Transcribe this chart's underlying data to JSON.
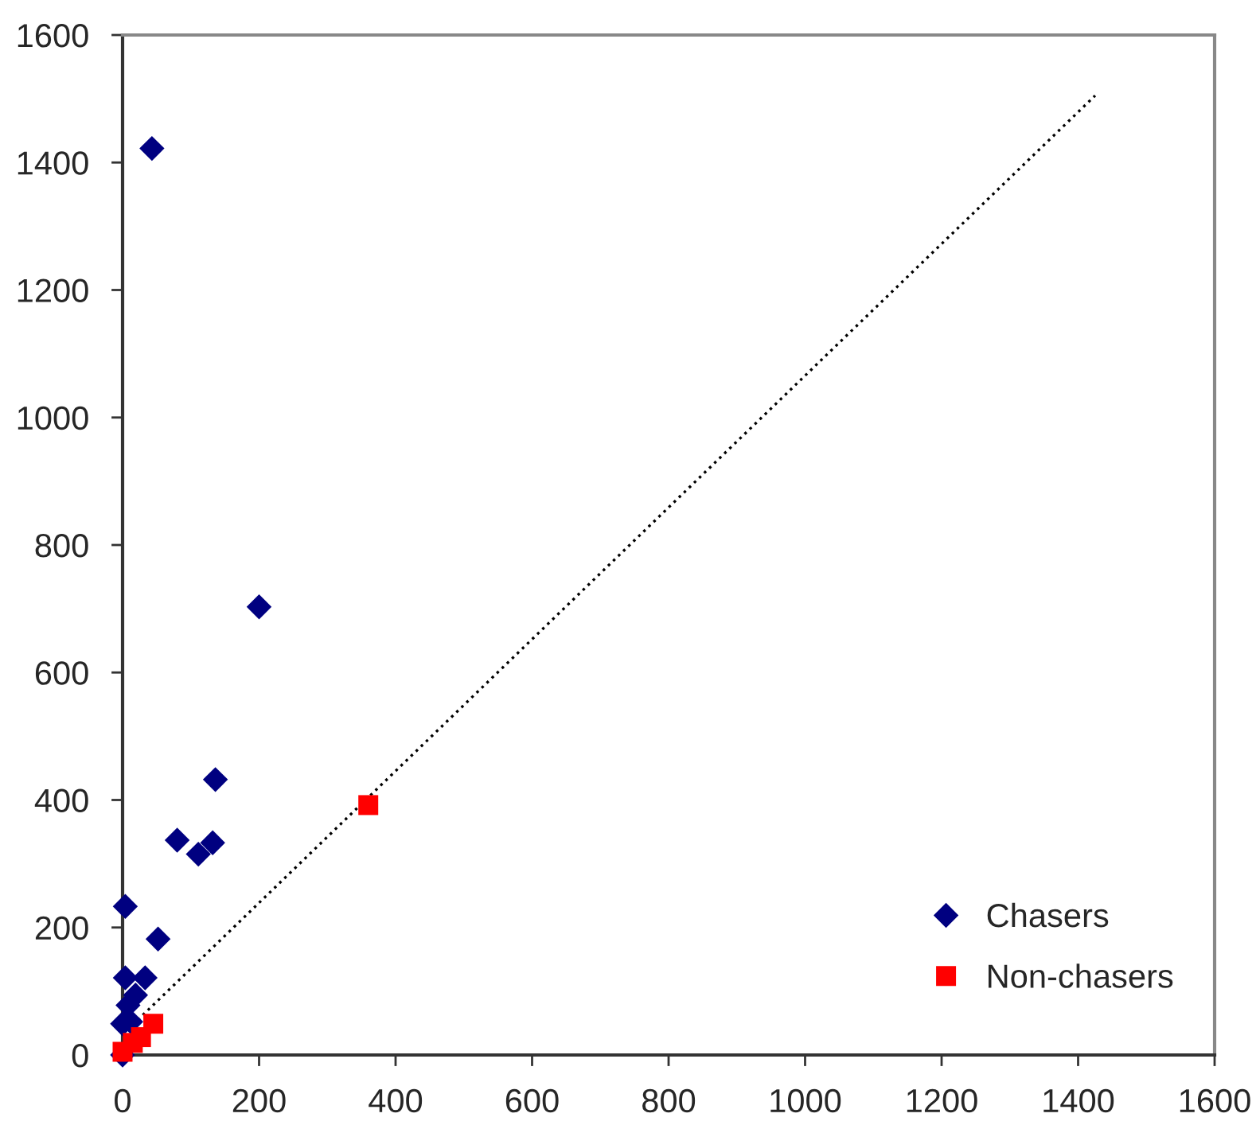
{
  "chart_data": {
    "type": "scatter",
    "xlim": [
      0,
      1600
    ],
    "ylim": [
      0,
      1600
    ],
    "xticks": [
      0,
      200,
      400,
      600,
      800,
      1000,
      1200,
      1400,
      1600
    ],
    "yticks": [
      0,
      200,
      400,
      600,
      800,
      1000,
      1200,
      1400,
      1600
    ],
    "grid": false,
    "legend": "bottom right",
    "series": [
      {
        "name": "Chasers",
        "color": "#000080",
        "marker": "diamond",
        "x": [
          43,
          200,
          136,
          80,
          111,
          132,
          4,
          52,
          4,
          33,
          19,
          8,
          0,
          12,
          0
        ],
        "values": [
          1422,
          703,
          432,
          337,
          315,
          333,
          233,
          182,
          121,
          121,
          94,
          78,
          49,
          52,
          0
        ]
      },
      {
        "name": "Non-chasers",
        "color": "#ff0000",
        "marker": "square",
        "x": [
          360,
          45,
          27,
          15,
          4,
          0
        ],
        "values": [
          392,
          49,
          28,
          19,
          null,
          5
        ]
      },
      {
        "type": "line",
        "color": "#000000",
        "line_style": "dotted",
        "marker": "none",
        "x": [
          0,
          1425
        ],
        "values": [
          32,
          1505
        ]
      }
    ]
  }
}
